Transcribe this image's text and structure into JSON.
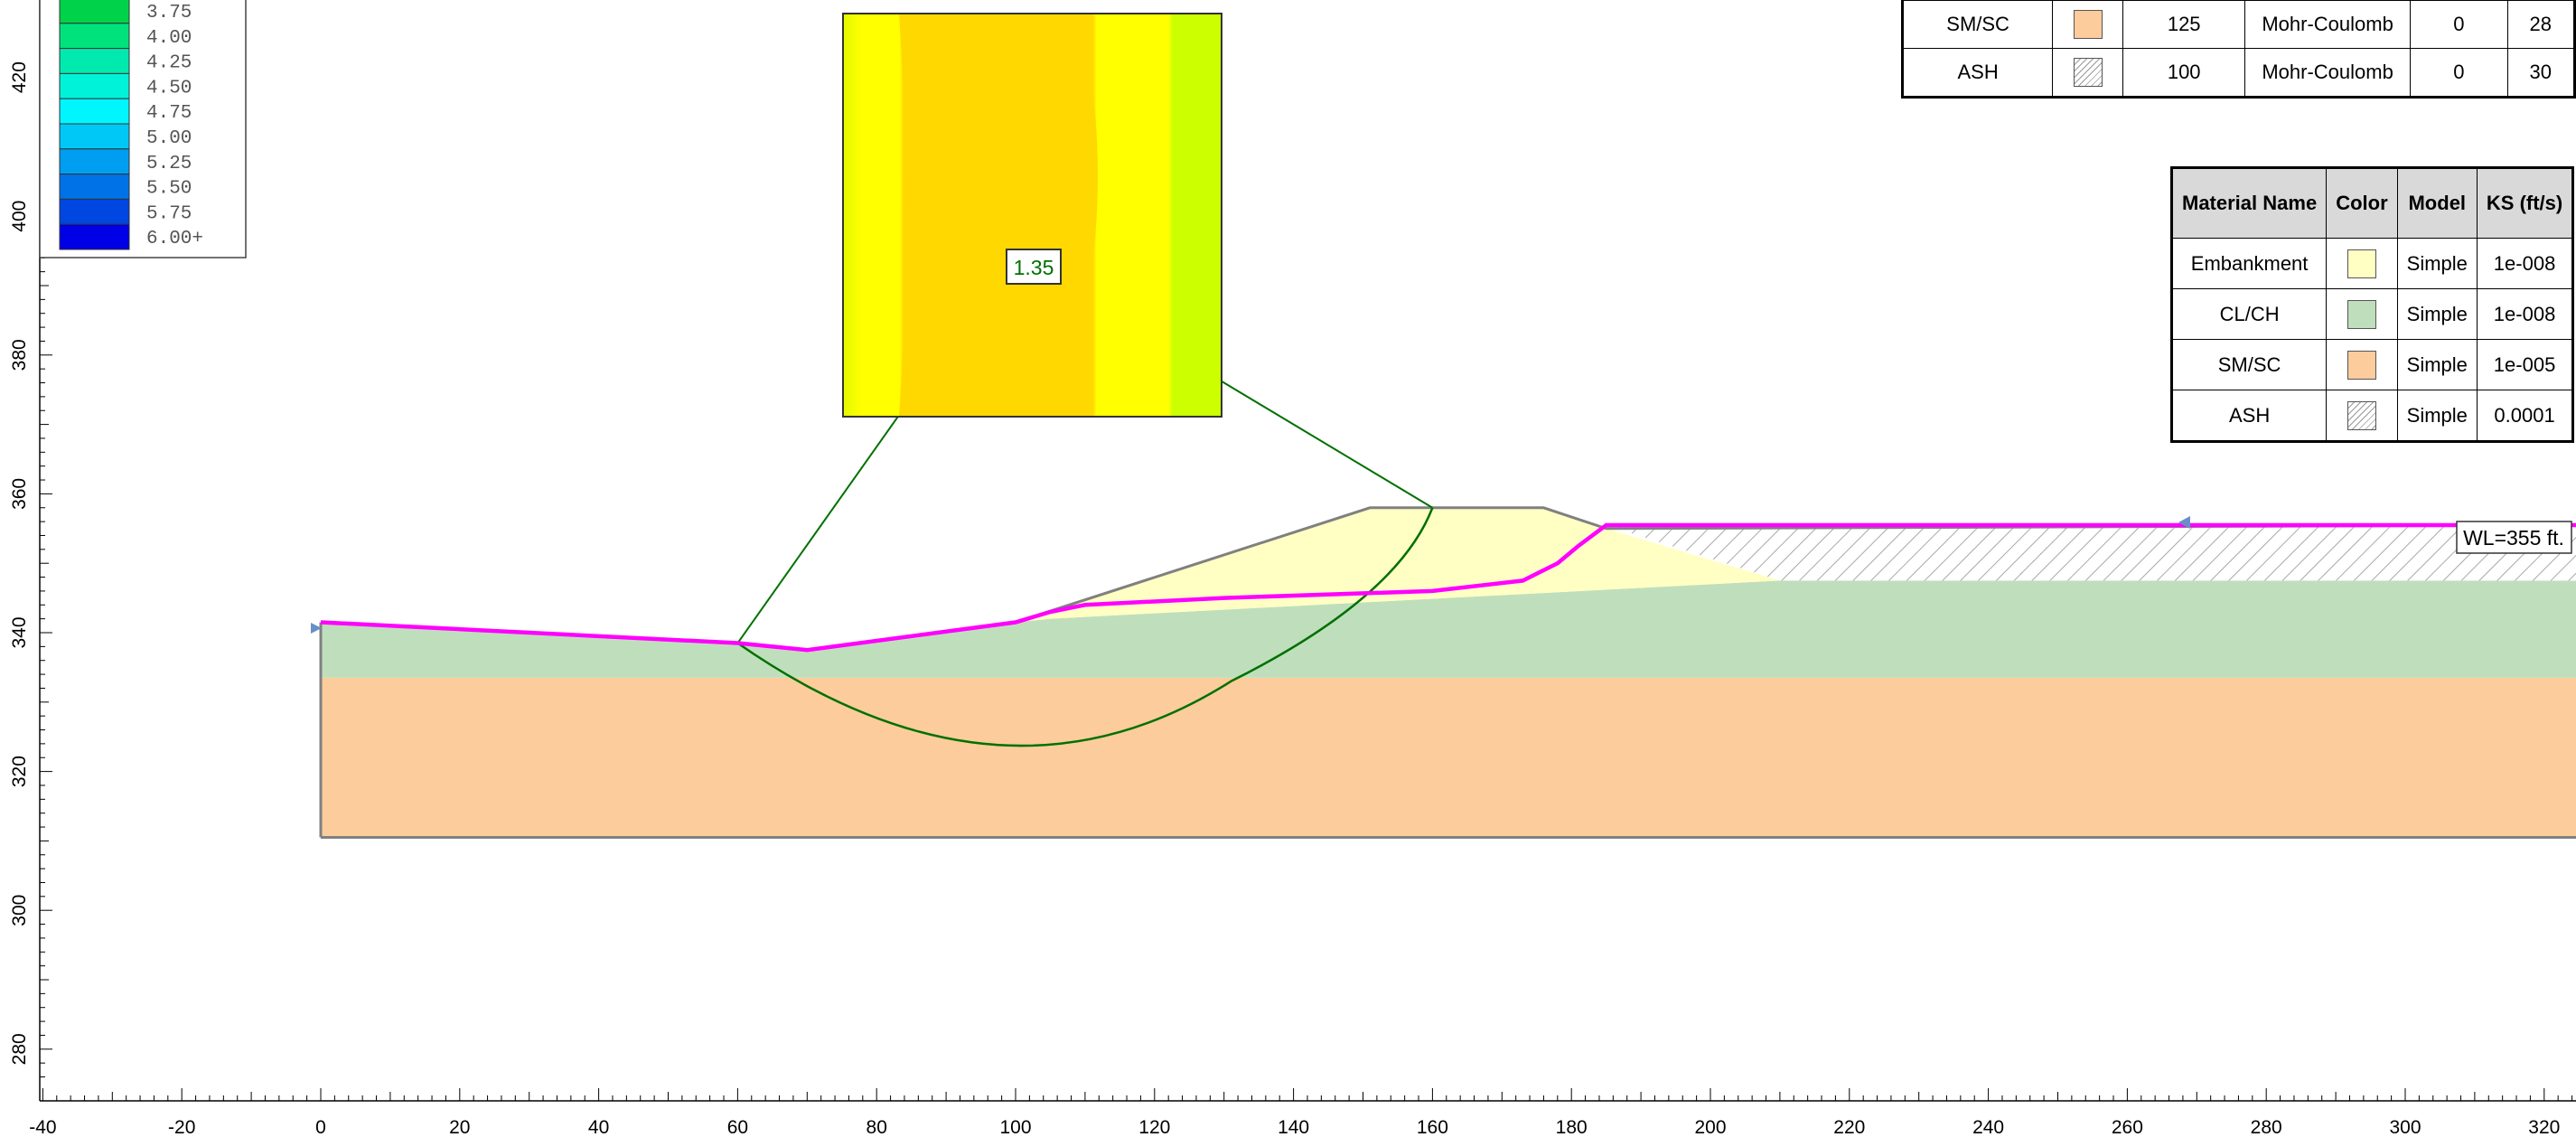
{
  "legend": {
    "entries": [
      {
        "label": "3.75",
        "color": "#00d34a"
      },
      {
        "label": "4.00",
        "color": "#00e27c"
      },
      {
        "label": "4.25",
        "color": "#00eab0"
      },
      {
        "label": "4.50",
        "color": "#00f3d8"
      },
      {
        "label": "4.75",
        "color": "#00f6ff"
      },
      {
        "label": "5.00",
        "color": "#00c8f6"
      },
      {
        "label": "5.25",
        "color": "#009ef0"
      },
      {
        "label": "5.50",
        "color": "#0072e8"
      },
      {
        "label": "5.75",
        "color": "#0046e0"
      },
      {
        "label": "6.00+",
        "color": "#0000e6"
      }
    ]
  },
  "strength_table": {
    "rows": [
      {
        "name": "SM/SC",
        "swatch": "#fccc9c",
        "pattern": "solid",
        "unit_weight": "125",
        "model": "Mohr-Coulomb",
        "cohesion": "0",
        "phi": "28"
      },
      {
        "name": "ASH",
        "swatch": "#ffffff",
        "pattern": "hatch",
        "unit_weight": "100",
        "model": "Mohr-Coulomb",
        "cohesion": "0",
        "phi": "30"
      }
    ]
  },
  "perm_table": {
    "headers": [
      "Material Name",
      "Color",
      "Model",
      "KS (ft/s)"
    ],
    "rows": [
      {
        "name": "Embankment",
        "swatch": "#ffffc4",
        "pattern": "solid",
        "model": "Simple",
        "ks": "1e-008"
      },
      {
        "name": "CL/CH",
        "swatch": "#bfdfbc",
        "pattern": "solid",
        "model": "Simple",
        "ks": "1e-008"
      },
      {
        "name": "SM/SC",
        "swatch": "#fccc9c",
        "pattern": "solid",
        "model": "Simple",
        "ks": "1e-005"
      },
      {
        "name": "ASH",
        "swatch": "#ffffff",
        "pattern": "hatch",
        "model": "Simple",
        "ks": "0.0001"
      }
    ]
  },
  "water_level_label": "WL=355 ft.",
  "factor_of_safety_label": "1.35",
  "axes": {
    "x_ticks": [
      "-40",
      "-20",
      "0",
      "20",
      "40",
      "60",
      "80",
      "100",
      "120",
      "140",
      "160",
      "180",
      "200",
      "220",
      "240",
      "260",
      "280",
      "300",
      "320"
    ],
    "y_ticks": [
      "280",
      "300",
      "320",
      "340",
      "360",
      "380",
      "400",
      "420"
    ]
  },
  "colors": {
    "embankment": "#ffffc4",
    "clay": "#bfdfbc",
    "sand": "#fccc9c",
    "water_table": "#ff00ff",
    "slip_surface": "#007000",
    "boundary": "#808080"
  },
  "model": {
    "water_table": [
      [
        0,
        341.5
      ],
      [
        60,
        338.5
      ],
      [
        70,
        337.5
      ],
      [
        100,
        341.5
      ],
      [
        105,
        343
      ],
      [
        110,
        344
      ],
      [
        130,
        345
      ],
      [
        160,
        346
      ],
      [
        173,
        347.5
      ],
      [
        178,
        350
      ],
      [
        181,
        352.5
      ],
      [
        185,
        355.5
      ],
      [
        325,
        355.5
      ]
    ],
    "slope_surface": [
      [
        0,
        341.5
      ],
      [
        60,
        338.5
      ],
      [
        70,
        337.5
      ],
      [
        100,
        341.5
      ],
      [
        151,
        358
      ],
      [
        176,
        358
      ],
      [
        185,
        355
      ]
    ],
    "clay_top": [
      [
        0,
        341.5
      ],
      [
        60,
        338.5
      ],
      [
        70,
        337.5
      ],
      [
        100,
        341.5
      ],
      [
        105,
        342
      ],
      [
        210,
        347.5
      ],
      [
        325,
        347.5
      ]
    ],
    "sand_top": 333.5,
    "bottom": 310.5,
    "x_left": 0,
    "x_right": 325,
    "slip_center": [
      100,
      404.5
    ],
    "slip_circle": {
      "center": [
        100,
        391
      ],
      "radius": 65.5
    }
  }
}
